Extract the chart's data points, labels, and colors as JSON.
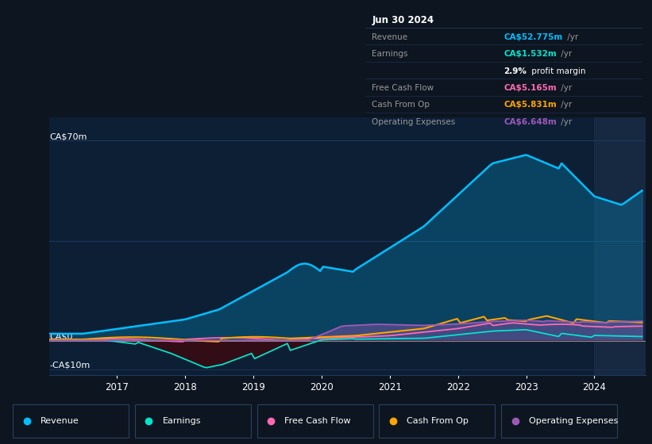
{
  "bg_color": "#0d1520",
  "plot_bg_color": "#0d1f35",
  "grid_color": "#1e3a5f",
  "zero_line_color": "#888888",
  "ylim": [
    -12,
    78
  ],
  "xlabel_years": [
    2017,
    2018,
    2019,
    2020,
    2021,
    2022,
    2023,
    2024
  ],
  "series_colors": {
    "Revenue": "#00bfff",
    "Earnings": "#00e5cc",
    "Free Cash Flow": "#ff69b4",
    "Cash From Op": "#ffa500",
    "Operating Expenses": "#9b59b6"
  },
  "info_box": {
    "date": "Jun 30 2024",
    "revenue_val": "CA$52.775m",
    "earnings_val": "CA$1.532m",
    "profit_margin": "2.9%",
    "fcf_val": "CA$5.165m",
    "cashfromop_val": "CA$5.831m",
    "opex_val": "CA$6.648m"
  },
  "legend_items": [
    {
      "label": "Revenue",
      "color": "#00bfff"
    },
    {
      "label": "Earnings",
      "color": "#00e5cc"
    },
    {
      "label": "Free Cash Flow",
      "color": "#ff69b4"
    },
    {
      "label": "Cash From Op",
      "color": "#ffa500"
    },
    {
      "label": "Operating Expenses",
      "color": "#9b59b6"
    }
  ]
}
